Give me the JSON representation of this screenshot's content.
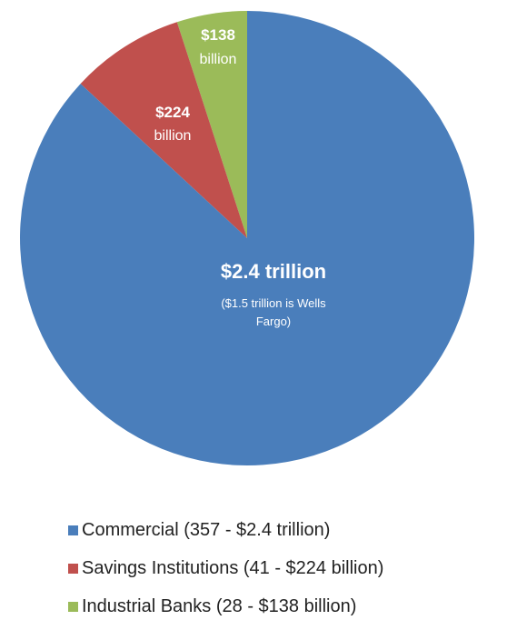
{
  "chart_data": {
    "type": "pie",
    "slices": [
      {
        "name": "Commercial",
        "value": 2400,
        "color": "#4a7ebb",
        "label_value": "$2.4 trillion",
        "label_note_1": "($1.5 trillion is Wells",
        "label_note_2": "Fargo)",
        "legend": "Commercial (357 - $2.4 trillion)"
      },
      {
        "name": "Savings Institutions",
        "value": 224,
        "color": "#c0504d",
        "label_value": "$224",
        "label_unit": "billion",
        "legend": "Savings Institutions (41 - $224 billion)"
      },
      {
        "name": "Industrial Banks",
        "value": 138,
        "color": "#9bbb59",
        "label_value": "$138",
        "label_unit": "billion",
        "legend": "Industrial Banks (28 - $138 billion)"
      }
    ],
    "start_angle": "12 o'clock",
    "direction": "counterclockwise",
    "legend_position": "bottom"
  }
}
